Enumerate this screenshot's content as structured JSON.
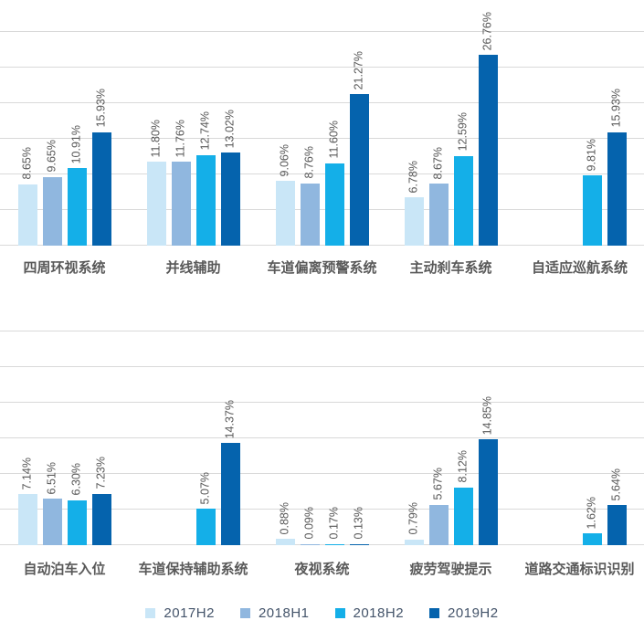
{
  "series_colors": {
    "2017H2": "#C9E6F7",
    "2018H1": "#90B7DF",
    "2018H2": "#14AFE8",
    "2019H2": "#0563AD"
  },
  "style_colors": {
    "gridline": "#D9D9D9",
    "value_label": "#595959",
    "category_label": "#595959",
    "legend_text": "#44546A",
    "background": "#FFFFFF"
  },
  "chart_data": [
    {
      "type": "bar",
      "title": "",
      "xlabel": "",
      "ylabel": "",
      "categories": [
        "四周环视系统",
        "并线辅助",
        "车道偏离预警系统",
        "主动刹车系统",
        "自适应巡航系统"
      ],
      "series": [
        {
          "name": "2017H2",
          "values": [
            8.65,
            11.8,
            9.06,
            6.78,
            null
          ]
        },
        {
          "name": "2018H1",
          "values": [
            9.65,
            11.76,
            8.76,
            8.67,
            null
          ]
        },
        {
          "name": "2018H2",
          "values": [
            10.91,
            12.74,
            11.6,
            12.59,
            9.81
          ]
        },
        {
          "name": "2019H2",
          "values": [
            15.93,
            13.02,
            21.27,
            26.76,
            15.93
          ]
        }
      ],
      "ylim": [
        0,
        30
      ],
      "gridline_step": 5,
      "grid": true,
      "y_axis_labels_shown": false,
      "value_labels": "rotated-90-above-bars",
      "value_label_format": "0.00%"
    },
    {
      "type": "bar",
      "title": "",
      "xlabel": "",
      "ylabel": "",
      "categories": [
        "自动泊车入位",
        "车道保持辅助系统",
        "夜视系统",
        "疲劳驾驶提示",
        "道路交通标识识别"
      ],
      "series": [
        {
          "name": "2017H2",
          "values": [
            7.14,
            null,
            0.88,
            0.79,
            null
          ]
        },
        {
          "name": "2018H1",
          "values": [
            6.51,
            null,
            0.09,
            5.67,
            null
          ]
        },
        {
          "name": "2018H2",
          "values": [
            6.3,
            5.07,
            0.17,
            8.12,
            1.62
          ]
        },
        {
          "name": "2019H2",
          "values": [
            7.23,
            14.37,
            0.13,
            14.85,
            5.64
          ]
        }
      ],
      "ylim": [
        0,
        30
      ],
      "gridline_step": 5,
      "grid": true,
      "y_axis_labels_shown": false,
      "value_labels": "rotated-90-above-bars",
      "value_label_format": "0.00%"
    }
  ],
  "legend": {
    "position": "bottom",
    "items": [
      "2017H2",
      "2018H1",
      "2018H2",
      "2019H2"
    ]
  }
}
